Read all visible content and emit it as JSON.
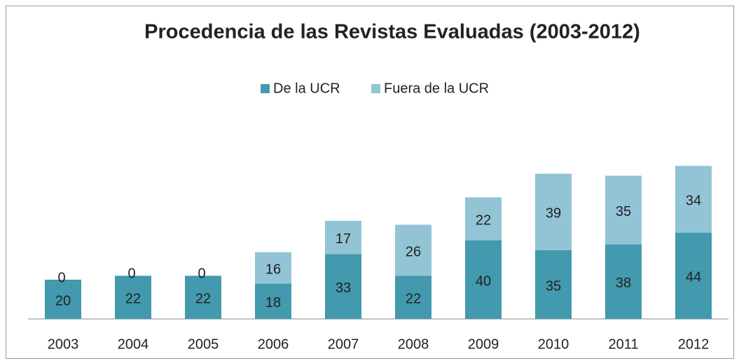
{
  "chart_data": {
    "type": "stacked_bar",
    "title": "Procedencia de las Revistas Evaluadas (2003-2012)",
    "categories": [
      "2003",
      "2004",
      "2005",
      "2006",
      "2007",
      "2008",
      "2009",
      "2010",
      "2011",
      "2012"
    ],
    "series": [
      {
        "name": "De la UCR",
        "color": "#4399ad",
        "values": [
          20,
          22,
          22,
          18,
          33,
          22,
          40,
          35,
          38,
          44
        ]
      },
      {
        "name": "Fuera de la UCR",
        "color": "#93c4d5",
        "values": [
          0,
          0,
          0,
          16,
          17,
          26,
          22,
          39,
          35,
          34
        ]
      }
    ],
    "legend": "top"
  }
}
